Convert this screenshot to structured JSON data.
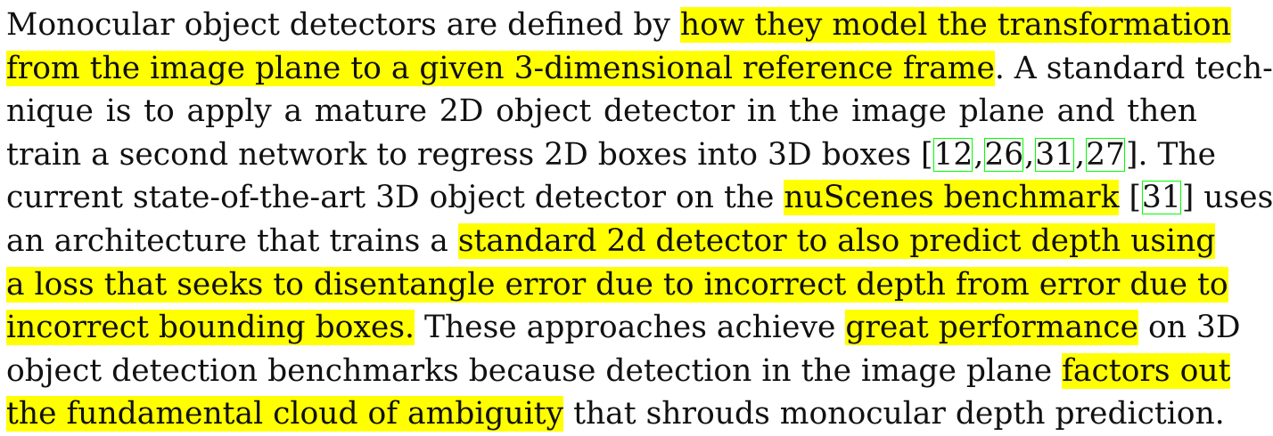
{
  "paragraph": {
    "lines": [
      [
        "Monocular object detectors are defined by ",
        {
          "hl": "how they model the transformation"
        }
      ],
      [
        {
          "hl": "from the image plane to a given 3-dimensional reference frame"
        },
        ". A standard tech-"
      ],
      [
        "nique is to apply a mature 2D object detector in the image plane and then"
      ],
      [
        "train a second network to regress 2D boxes into 3D boxes [",
        {
          "cite": "12"
        },
        ",",
        {
          "cite": "26"
        },
        ",",
        {
          "cite": "31"
        },
        ",",
        {
          "cite": "27"
        },
        "]. The"
      ],
      [
        "current state-of-the-art 3D object detector on the ",
        {
          "hl": "nuScenes benchmark"
        },
        " [",
        {
          "cite": "31"
        },
        "] uses"
      ],
      [
        "an architecture that trains a ",
        {
          "hl": "standard 2d detector to also predict depth using"
        }
      ],
      [
        {
          "hl": "a loss that seeks to disentangle error due to incorrect depth from error due to"
        }
      ],
      [
        {
          "hl": "incorrect bounding boxes."
        },
        " These approaches achieve ",
        {
          "hl": "great performance"
        },
        " on 3D"
      ],
      [
        "object detection benchmarks because detection in the image plane ",
        {
          "hl": "factors out"
        }
      ],
      [
        {
          "hl": "the fundamental cloud of ambiguity"
        },
        " that shrouds monocular depth prediction."
      ]
    ]
  },
  "colors": {
    "highlight": "#ffff00",
    "citation_box": "#00ff00",
    "text": "#111111"
  }
}
